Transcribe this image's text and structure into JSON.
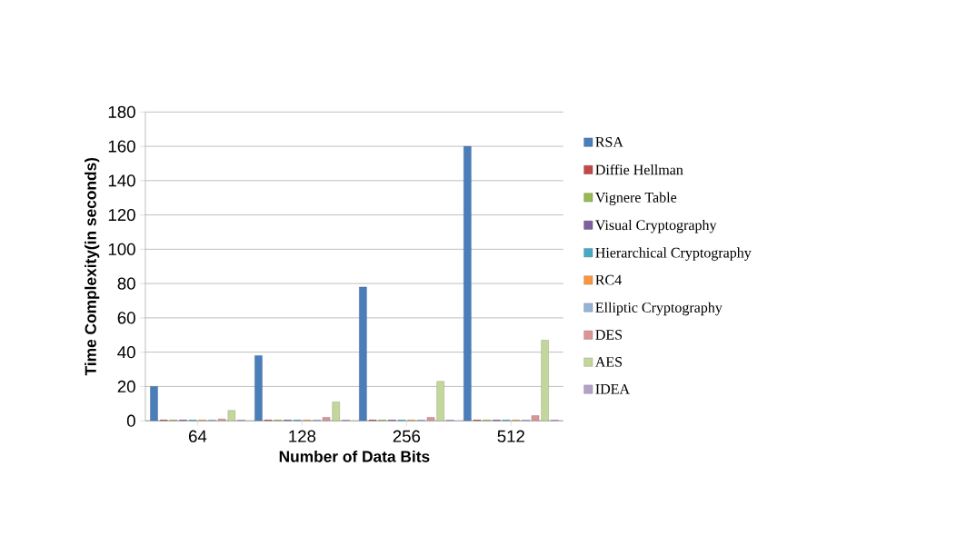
{
  "chart_data": {
    "type": "bar",
    "xlabel": "Number of Data Bits",
    "ylabel": "Time Complexity(in seconds)",
    "categories": [
      "64",
      "128",
      "256",
      "512"
    ],
    "series": [
      {
        "name": "RSA",
        "color": "#4a7ebb",
        "values": [
          20,
          38,
          78,
          160
        ]
      },
      {
        "name": "Diffie Hellman",
        "color": "#be4b48",
        "values": [
          0.5,
          0.5,
          0.5,
          0.5
        ]
      },
      {
        "name": "Vignere Table",
        "color": "#98b954",
        "values": [
          0.5,
          0.5,
          0.5,
          0.5
        ]
      },
      {
        "name": "Visual Cryptography",
        "color": "#7d60a0",
        "values": [
          0.5,
          0.5,
          0.5,
          0.5
        ]
      },
      {
        "name": "Hierarchical Cryptography",
        "color": "#46aac5",
        "values": [
          0.5,
          0.5,
          0.5,
          0.5
        ]
      },
      {
        "name": "RC4",
        "color": "#f79646",
        "values": [
          0.5,
          0.5,
          0.5,
          0.5
        ]
      },
      {
        "name": "Elliptic Cryptography",
        "color": "#95b3d7",
        "values": [
          0.5,
          0.5,
          0.5,
          0.5
        ]
      },
      {
        "name": "DES",
        "color": "#d99694",
        "values": [
          1,
          2,
          2,
          3
        ]
      },
      {
        "name": "AES",
        "color": "#c3d69b",
        "values": [
          6,
          11,
          23,
          47
        ]
      },
      {
        "name": "IDEA",
        "color": "#b3a2c7",
        "values": [
          0.5,
          0.5,
          0.5,
          0.5
        ]
      }
    ],
    "ylim": [
      0,
      180
    ],
    "yticks": [
      0,
      20,
      40,
      60,
      80,
      100,
      120,
      140,
      160,
      180
    ],
    "grid": "y",
    "legend": "right"
  }
}
